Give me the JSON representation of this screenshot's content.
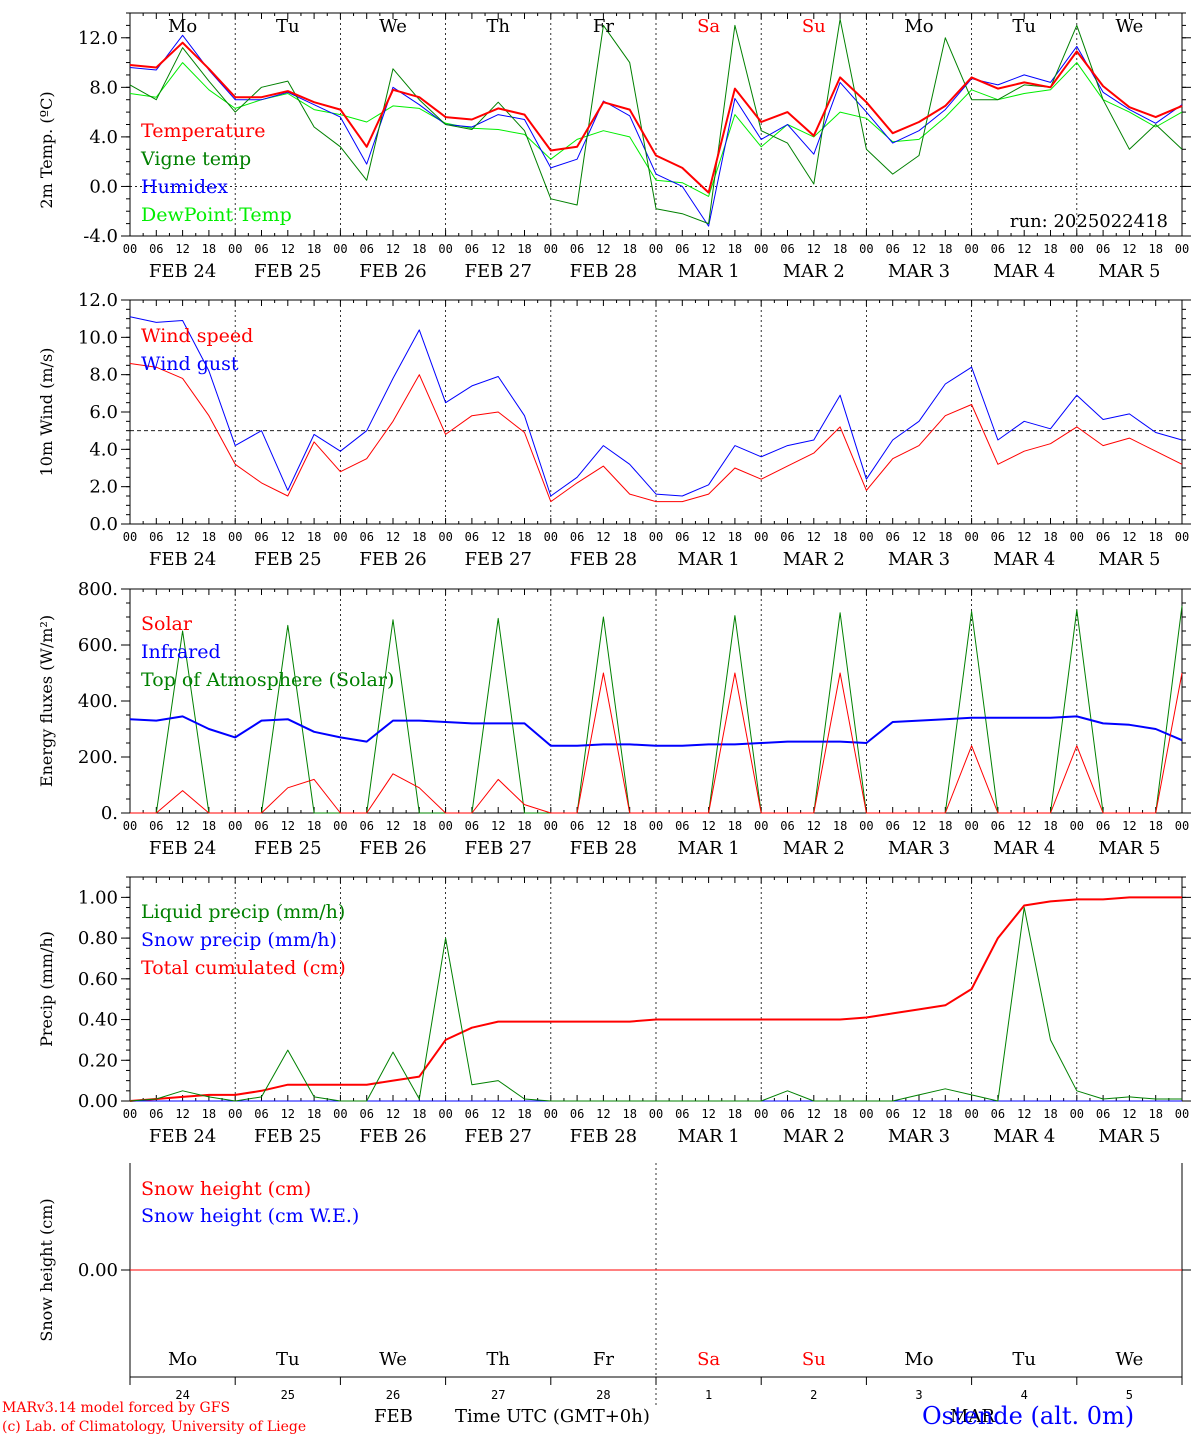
{
  "footer": {
    "credit1": "MARv3.14 model forced by GFS",
    "credit2": "(c) Lab. of Climatology, University of Liege",
    "month_feb": "FEB",
    "time_label": "Time UTC (GMT+0h)",
    "month_mar": "MAR",
    "station": "Ostende (alt. 0m)"
  },
  "run_label": "run: 2025022418",
  "hour_ticks": [
    "00",
    "06",
    "12",
    "18"
  ],
  "day_labels": [
    "FEB 24",
    "FEB 25",
    "FEB 26",
    "FEB 27",
    "FEB 28",
    "MAR  1",
    "MAR  2",
    "MAR  3",
    "MAR  4",
    "MAR  5"
  ],
  "day_names": [
    "Mo",
    "Tu",
    "We",
    "Th",
    "Fr",
    "Sa",
    "Su",
    "Mo",
    "Tu",
    "We"
  ],
  "day_name_colors": [
    "#000000",
    "#000000",
    "#000000",
    "#000000",
    "#000000",
    "#ff0000",
    "#ff0000",
    "#000000",
    "#000000",
    "#000000"
  ],
  "bottom_day_numbers": [
    "24",
    "25",
    "26",
    "27",
    "28",
    "1",
    "2",
    "3",
    "4",
    "5"
  ],
  "chart_data": [
    {
      "type": "line",
      "ylabel": "2m Temp. (ºC)",
      "ylim": [
        -4,
        14
      ],
      "yticks": [
        "-4.0",
        "0.0",
        "4.0",
        "8.0",
        "12.0"
      ],
      "x_hours": [
        0,
        6,
        12,
        18,
        24,
        30,
        36,
        42,
        48,
        54,
        60,
        66,
        72,
        78,
        84,
        90,
        96,
        102,
        108,
        114,
        120,
        126,
        132,
        138,
        144,
        150,
        156,
        162,
        168,
        174,
        180,
        186,
        192,
        198,
        204,
        210,
        216,
        222,
        228,
        234,
        240
      ],
      "series": [
        {
          "name": "Temperature",
          "color": "#ff0000",
          "values": [
            9.8,
            9.6,
            11.6,
            9.5,
            7.2,
            7.2,
            7.7,
            6.8,
            6.2,
            3.2,
            7.8,
            7.2,
            5.6,
            5.4,
            6.3,
            5.8,
            2.9,
            3.2,
            6.8,
            6.2,
            2.5,
            1.5,
            -0.5,
            7.9,
            5.2,
            6.0,
            4.1,
            8.8,
            6.8,
            4.3,
            5.2,
            6.5,
            8.8,
            7.9,
            8.4,
            8.0,
            10.9,
            8.1,
            6.4,
            5.6,
            6.5
          ]
        },
        {
          "name": "Vigne temp",
          "color": "#008000",
          "values": [
            8.2,
            7.0,
            11.2,
            8.5,
            6.0,
            8.0,
            8.5,
            4.8,
            3.2,
            0.5,
            9.5,
            7.0,
            5.0,
            4.6,
            6.8,
            4.5,
            -1.0,
            -1.5,
            13.0,
            10.0,
            -1.8,
            -2.2,
            -3.0,
            13.0,
            4.5,
            3.5,
            0.2,
            13.5,
            3.0,
            1.0,
            2.5,
            12.0,
            7.0,
            7.0,
            8.2,
            8.0,
            13.0,
            7.0,
            3.0,
            5.0,
            3.0
          ]
        },
        {
          "name": "Humidex",
          "color": "#0000ff",
          "values": [
            9.6,
            9.4,
            12.2,
            9.4,
            7.0,
            7.0,
            7.6,
            6.6,
            5.6,
            1.8,
            8.0,
            6.6,
            5.0,
            4.8,
            5.8,
            5.4,
            1.5,
            2.2,
            6.9,
            5.7,
            1.0,
            0.0,
            -3.2,
            7.1,
            3.8,
            5.0,
            2.6,
            8.4,
            6.0,
            3.5,
            4.5,
            6.2,
            8.7,
            8.2,
            9.0,
            8.4,
            11.3,
            7.6,
            6.2,
            5.1,
            6.6
          ]
        },
        {
          "name": "DewPoint Temp",
          "color": "#00ee00",
          "values": [
            7.5,
            7.2,
            10.0,
            7.8,
            6.3,
            7.0,
            7.5,
            6.2,
            5.8,
            5.2,
            6.5,
            6.3,
            5.1,
            4.7,
            4.6,
            4.2,
            2.2,
            3.8,
            4.5,
            4.0,
            0.5,
            0.3,
            -0.8,
            5.8,
            3.2,
            5.0,
            4.0,
            6.0,
            5.5,
            3.6,
            3.8,
            5.6,
            7.8,
            7.0,
            7.5,
            7.8,
            10.0,
            7.0,
            6.0,
            4.8,
            6.0
          ]
        }
      ]
    },
    {
      "type": "line",
      "ylabel": "10m Wind (m/s)",
      "ylim": [
        0,
        12
      ],
      "yticks": [
        "0.0",
        "2.0",
        "4.0",
        "6.0",
        "8.0",
        "10.0",
        "12.0"
      ],
      "x_hours": [
        0,
        6,
        12,
        18,
        24,
        30,
        36,
        42,
        48,
        54,
        60,
        66,
        72,
        78,
        84,
        90,
        96,
        102,
        108,
        114,
        120,
        126,
        132,
        138,
        144,
        150,
        156,
        162,
        168,
        174,
        180,
        186,
        192,
        198,
        204,
        210,
        216,
        222,
        228,
        234,
        240
      ],
      "series": [
        {
          "name": "Wind speed",
          "color": "#ff0000",
          "values": [
            8.6,
            8.4,
            7.8,
            5.8,
            3.2,
            2.2,
            1.5,
            4.4,
            2.8,
            3.5,
            5.5,
            8.0,
            4.8,
            5.8,
            6.0,
            4.9,
            1.2,
            2.2,
            3.1,
            1.6,
            1.2,
            1.2,
            1.6,
            3.0,
            2.4,
            3.1,
            3.8,
            5.2,
            1.8,
            3.5,
            4.2,
            5.8,
            6.4,
            3.2,
            3.9,
            4.3,
            5.2,
            4.2,
            4.6,
            3.9,
            3.2
          ]
        },
        {
          "name": "Wind gust",
          "color": "#0000ff",
          "values": [
            11.1,
            10.8,
            10.9,
            8.2,
            4.2,
            5.0,
            1.8,
            4.8,
            3.9,
            5.0,
            7.8,
            10.4,
            6.5,
            7.4,
            7.9,
            5.8,
            1.5,
            2.5,
            4.2,
            3.2,
            1.6,
            1.5,
            2.1,
            4.2,
            3.6,
            4.2,
            4.5,
            6.9,
            2.4,
            4.5,
            5.5,
            7.5,
            8.4,
            4.5,
            5.5,
            5.1,
            6.9,
            5.6,
            5.9,
            4.9,
            4.5
          ]
        }
      ],
      "reference_line": 5.0
    },
    {
      "type": "line",
      "ylabel": "Energy fluxes (W/m²)",
      "ylim": [
        0,
        800
      ],
      "yticks": [
        "0.",
        "200.",
        "400.",
        "600.",
        "800."
      ],
      "x_hours": [
        0,
        6,
        12,
        18,
        24,
        30,
        36,
        42,
        48,
        54,
        60,
        66,
        72,
        78,
        84,
        90,
        96,
        102,
        108,
        114,
        120,
        126,
        132,
        138,
        144,
        150,
        156,
        162,
        168,
        174,
        180,
        186,
        192,
        198,
        204,
        210,
        216,
        222,
        228,
        234,
        240
      ],
      "series": [
        {
          "name": "Solar",
          "color": "#ff0000",
          "values": [
            0,
            0,
            80,
            0,
            0,
            0,
            90,
            120,
            0,
            0,
            140,
            90,
            0,
            0,
            120,
            30,
            0,
            0,
            500,
            0,
            0,
            0,
            0,
            500,
            0,
            0,
            0,
            500,
            0,
            0,
            0,
            0,
            240,
            0,
            0,
            0,
            240,
            0,
            0,
            0,
            500
          ]
        },
        {
          "name": "Infrared",
          "color": "#0000ff",
          "values": [
            335,
            330,
            345,
            300,
            270,
            330,
            335,
            290,
            270,
            255,
            330,
            330,
            325,
            320,
            320,
            320,
            240,
            240,
            245,
            245,
            240,
            240,
            245,
            245,
            250,
            255,
            255,
            255,
            250,
            325,
            330,
            335,
            340,
            340,
            340,
            340,
            345,
            320,
            315,
            300,
            260
          ]
        },
        {
          "name": "Top of Atmosphere (Solar)",
          "color": "#008000",
          "values": [
            0,
            0,
            650,
            0,
            0,
            0,
            670,
            0,
            0,
            0,
            690,
            0,
            0,
            0,
            695,
            0,
            0,
            0,
            700,
            0,
            0,
            0,
            0,
            705,
            0,
            0,
            0,
            715,
            0,
            0,
            0,
            0,
            720,
            0,
            0,
            0,
            725,
            0,
            0,
            0,
            740
          ]
        }
      ]
    },
    {
      "type": "line",
      "ylabel": "Precip (mm/h)",
      "ylim": [
        0,
        1.1
      ],
      "yticks": [
        "0.00",
        "0.20",
        "0.40",
        "0.60",
        "0.80",
        "1.00"
      ],
      "x_hours": [
        0,
        6,
        12,
        18,
        24,
        30,
        36,
        42,
        48,
        54,
        60,
        66,
        72,
        78,
        84,
        90,
        96,
        102,
        108,
        114,
        120,
        126,
        132,
        138,
        144,
        150,
        156,
        162,
        168,
        174,
        180,
        186,
        192,
        198,
        204,
        210,
        216,
        222,
        228,
        234,
        240
      ],
      "series": [
        {
          "name": "Liquid precip (mm/h)",
          "color": "#008000",
          "values": [
            0,
            0.01,
            0.05,
            0.02,
            0,
            0.02,
            0.25,
            0.02,
            0,
            0,
            0.24,
            0.01,
            0.8,
            0.08,
            0.1,
            0.01,
            0,
            0,
            0,
            0,
            0,
            0,
            0,
            0,
            0,
            0.05,
            0,
            0,
            0,
            0,
            0.03,
            0.06,
            0.03,
            0,
            0.95,
            0.3,
            0.05,
            0.01,
            0.02,
            0.01,
            0.01
          ]
        },
        {
          "name": "Snow precip (mm/h)",
          "color": "#0000ff",
          "values": [
            0,
            0,
            0,
            0,
            0,
            0,
            0,
            0,
            0,
            0,
            0,
            0,
            0,
            0,
            0,
            0,
            0,
            0,
            0,
            0,
            0,
            0,
            0,
            0,
            0,
            0,
            0,
            0,
            0,
            0,
            0,
            0,
            0,
            0,
            0,
            0,
            0,
            0,
            0,
            0,
            0
          ]
        },
        {
          "name": "Total cumulated (cm)",
          "color": "#ff0000",
          "values": [
            0,
            0.01,
            0.02,
            0.03,
            0.03,
            0.05,
            0.08,
            0.08,
            0.08,
            0.08,
            0.1,
            0.12,
            0.3,
            0.36,
            0.39,
            0.39,
            0.39,
            0.39,
            0.39,
            0.39,
            0.4,
            0.4,
            0.4,
            0.4,
            0.4,
            0.4,
            0.4,
            0.4,
            0.41,
            0.43,
            0.45,
            0.47,
            0.55,
            0.8,
            0.96,
            0.98,
            0.99,
            0.99,
            1.0,
            1.0,
            1.0
          ]
        }
      ]
    },
    {
      "type": "line",
      "ylabel": "Snow height (cm)",
      "ylim": [
        -1,
        1
      ],
      "yticks": [
        "0.00"
      ],
      "x_hours": [
        0,
        240
      ],
      "series": [
        {
          "name": "Snow height (cm)",
          "color": "#ff0000",
          "values": [
            0,
            0
          ]
        },
        {
          "name": "Snow height (cm W.E.)",
          "color": "#0000ff",
          "values": [
            0,
            0
          ]
        }
      ]
    }
  ]
}
